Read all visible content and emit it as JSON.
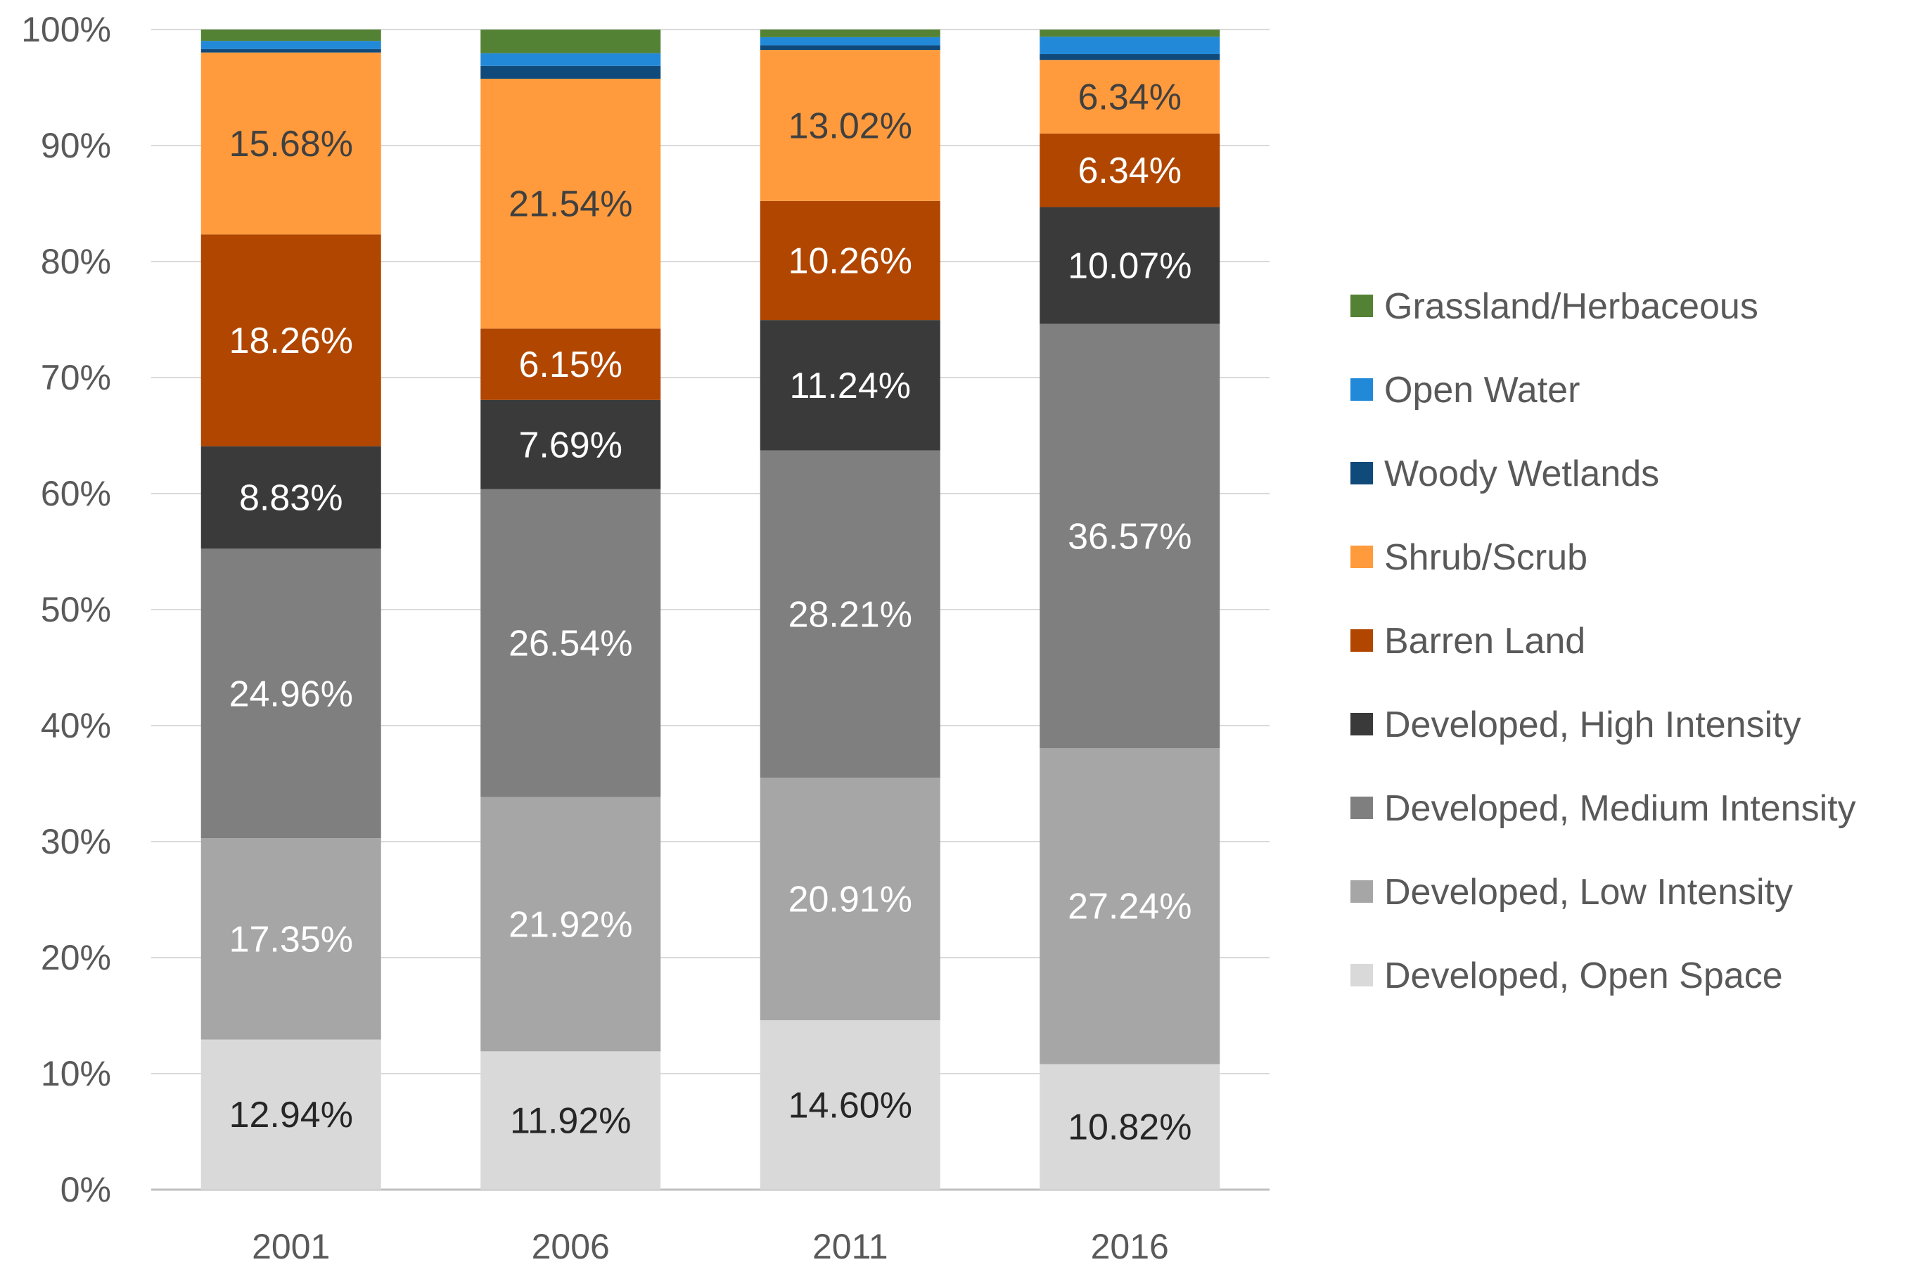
{
  "chart_data": {
    "type": "bar",
    "stacked": true,
    "percent": true,
    "title": "",
    "xlabel": "",
    "ylabel": "",
    "ylim": [
      0,
      100
    ],
    "y_ticks": [
      "0%",
      "10%",
      "20%",
      "30%",
      "40%",
      "50%",
      "60%",
      "70%",
      "80%",
      "90%",
      "100%"
    ],
    "categories": [
      "2001",
      "2006",
      "2011",
      "2016"
    ],
    "legend_position": "right",
    "series": [
      {
        "name": "Developed, Open Space",
        "color": "#d9d9d9",
        "label_color": "#262626",
        "values": [
          12.94,
          11.92,
          14.6,
          10.82
        ],
        "labels": [
          "12.94%",
          "11.92%",
          "14.60%",
          "10.82%"
        ]
      },
      {
        "name": "Developed, Low Intensity",
        "color": "#a6a6a6",
        "label_color": "#ffffff",
        "values": [
          17.35,
          21.92,
          20.91,
          27.24
        ],
        "labels": [
          "17.35%",
          "21.92%",
          "20.91%",
          "27.24%"
        ]
      },
      {
        "name": "Developed, Medium Intensity",
        "color": "#7f7f7f",
        "label_color": "#ffffff",
        "values": [
          24.96,
          26.54,
          28.21,
          36.57
        ],
        "labels": [
          "24.96%",
          "26.54%",
          "28.21%",
          "36.57%"
        ]
      },
      {
        "name": "Developed, High Intensity",
        "color": "#3a3a3a",
        "label_color": "#ffffff",
        "values": [
          8.83,
          7.69,
          11.24,
          10.07
        ],
        "labels": [
          "8.83%",
          "7.69%",
          "11.24%",
          "10.07%"
        ]
      },
      {
        "name": "Barren Land",
        "color": "#b04600",
        "label_color": "#ffffff",
        "values": [
          18.26,
          6.15,
          10.26,
          6.34
        ],
        "labels": [
          "18.26%",
          "6.15%",
          "10.26%",
          "6.34%"
        ]
      },
      {
        "name": "Shrub/Scrub",
        "color": "#ff9b3d",
        "label_color": "#404040",
        "values": [
          15.68,
          21.54,
          13.02,
          6.34
        ],
        "labels": [
          "15.68%",
          "21.54%",
          "13.02%",
          "6.34%"
        ]
      },
      {
        "name": "Woody Wetlands",
        "color": "#104a7a",
        "label_color": "#ffffff",
        "values": [
          0.3,
          1.1,
          0.4,
          0.5
        ],
        "labels": [
          "",
          "",
          "",
          ""
        ]
      },
      {
        "name": "Open Water",
        "color": "#2288d8",
        "label_color": "#ffffff",
        "values": [
          0.7,
          1.1,
          0.7,
          1.5
        ],
        "labels": [
          "",
          "",
          "",
          ""
        ]
      },
      {
        "name": "Grassland/Herbaceous",
        "color": "#548235",
        "label_color": "#ffffff",
        "values": [
          0.98,
          2.03,
          0.66,
          0.61
        ],
        "labels": [
          "",
          "",
          "",
          ""
        ]
      }
    ]
  }
}
